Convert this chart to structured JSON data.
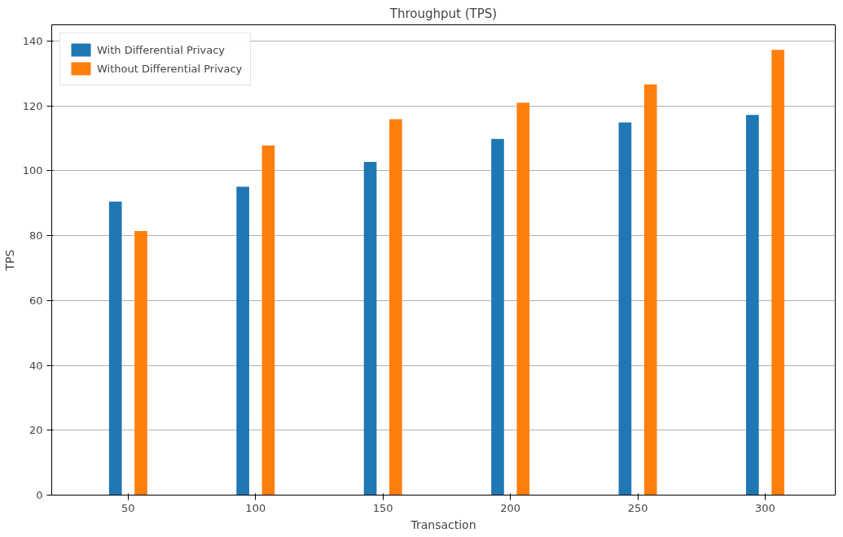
{
  "chart_data": {
    "type": "bar",
    "title": "Throughput (TPS)",
    "xlabel": "Transaction",
    "ylabel": "TPS",
    "categories": [
      "50",
      "100",
      "150",
      "200",
      "250",
      "300"
    ],
    "series": [
      {
        "name": "With Differential Privacy",
        "color": "#1f77b4",
        "values": [
          90.5,
          95.1,
          102.7,
          109.8,
          114.9,
          117.2
        ]
      },
      {
        "name": "Without Differential Privacy",
        "color": "#ff7f0e",
        "values": [
          81.4,
          107.8,
          115.9,
          121.0,
          126.6,
          137.3
        ]
      }
    ],
    "ylim": [
      0,
      145
    ],
    "yticks": [
      0,
      20,
      40,
      60,
      80,
      100,
      120,
      140
    ],
    "grid": "y",
    "legend": "top left"
  }
}
